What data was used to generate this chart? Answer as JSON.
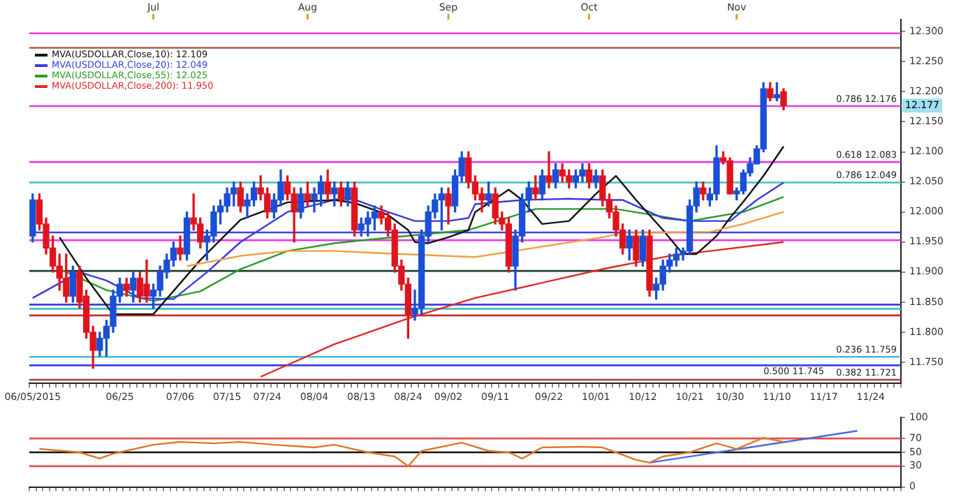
{
  "chart_data": [
    {
      "type": "candlestick",
      "legend": "top left",
      "marker": "none",
      "categories": [
        "06/05/2015",
        null,
        null,
        null,
        null,
        null,
        null,
        null,
        null,
        null,
        null,
        null,
        null,
        "06/25",
        null,
        null,
        null,
        null,
        null,
        null,
        null,
        null,
        "07/06",
        null,
        null,
        null,
        null,
        null,
        null,
        "07/15",
        null,
        null,
        null,
        null,
        null,
        "07/24",
        null,
        null,
        null,
        null,
        null,
        null,
        "08/04",
        null,
        null,
        null,
        null,
        null,
        null,
        "08/13",
        null,
        null,
        null,
        null,
        null,
        null,
        "08/24",
        null,
        null,
        null,
        null,
        null,
        "09/02",
        null,
        null,
        null,
        null,
        null,
        null,
        "09/11",
        null,
        null,
        null,
        null,
        null,
        null,
        null,
        "09/22",
        null,
        null,
        null,
        null,
        null,
        null,
        "10/01",
        null,
        null,
        null,
        null,
        null,
        null,
        "10/12",
        null,
        null,
        null,
        null,
        null,
        null,
        "10/21",
        null,
        null,
        null,
        null,
        null,
        "10/30",
        null,
        null,
        null,
        null,
        null,
        null,
        "11/10",
        null,
        null,
        null,
        null,
        null,
        null,
        "11/17",
        null,
        null,
        null,
        null,
        null,
        null,
        "11/24",
        null,
        null,
        null,
        null
      ],
      "ohlc": [
        [
          11.96,
          12.03,
          11.95,
          12.02
        ],
        [
          12.02,
          12.03,
          11.97,
          11.98
        ],
        [
          11.98,
          11.99,
          11.93,
          11.94
        ],
        [
          11.94,
          11.96,
          11.9,
          11.91
        ],
        [
          11.91,
          11.93,
          11.87,
          11.89
        ],
        [
          11.89,
          11.93,
          11.85,
          11.86
        ],
        [
          11.86,
          11.91,
          11.85,
          11.9
        ],
        [
          11.9,
          11.91,
          11.84,
          11.85
        ],
        [
          11.86,
          11.87,
          11.79,
          11.8
        ],
        [
          11.8,
          11.81,
          11.74,
          11.77
        ],
        [
          11.77,
          11.8,
          11.76,
          11.79
        ],
        [
          11.79,
          11.82,
          11.76,
          11.81
        ],
        [
          11.81,
          11.87,
          11.8,
          11.86
        ],
        [
          11.86,
          11.89,
          11.85,
          11.88
        ],
        [
          11.88,
          11.89,
          11.86,
          11.87
        ],
        [
          11.87,
          11.9,
          11.85,
          11.89
        ],
        [
          11.89,
          11.9,
          11.85,
          11.86
        ],
        [
          11.88,
          11.92,
          11.85,
          11.86
        ],
        [
          11.86,
          11.88,
          11.84,
          11.87
        ],
        [
          11.87,
          11.91,
          11.86,
          11.9
        ],
        [
          11.9,
          11.93,
          11.89,
          11.92
        ],
        [
          11.92,
          11.95,
          11.91,
          11.94
        ],
        [
          11.94,
          11.96,
          11.92,
          11.93
        ],
        [
          11.93,
          12.0,
          11.92,
          11.99
        ],
        [
          11.99,
          12.03,
          11.97,
          11.98
        ],
        [
          11.98,
          11.99,
          11.94,
          11.95
        ],
        [
          11.95,
          11.97,
          11.92,
          11.96
        ],
        [
          11.96,
          12.01,
          11.95,
          12.0
        ],
        [
          12.0,
          12.02,
          11.98,
          12.01
        ],
        [
          12.01,
          12.04,
          12.0,
          12.03
        ],
        [
          12.03,
          12.05,
          12.01,
          12.04
        ],
        [
          12.04,
          12.05,
          12.0,
          12.01
        ],
        [
          12.01,
          12.03,
          11.99,
          12.02
        ],
        [
          12.02,
          12.05,
          12.01,
          12.04
        ],
        [
          12.04,
          12.06,
          12.02,
          12.03
        ],
        [
          12.03,
          12.04,
          11.99,
          12.0
        ],
        [
          12.0,
          12.03,
          11.99,
          12.02
        ],
        [
          12.02,
          12.07,
          12.01,
          12.05
        ],
        [
          12.05,
          12.06,
          12.02,
          12.03
        ],
        [
          12.03,
          12.04,
          11.95,
          12.0
        ],
        [
          12.0,
          12.04,
          11.99,
          12.03
        ],
        [
          12.03,
          12.05,
          12.01,
          12.02
        ],
        [
          12.02,
          12.04,
          12.0,
          12.03
        ],
        [
          12.03,
          12.06,
          12.01,
          12.05
        ],
        [
          12.05,
          12.07,
          12.02,
          12.03
        ],
        [
          12.03,
          12.05,
          12.01,
          12.04
        ],
        [
          12.04,
          12.05,
          12.01,
          12.02
        ],
        [
          12.02,
          12.05,
          12.01,
          12.04
        ],
        [
          12.04,
          12.05,
          11.96,
          11.97
        ],
        [
          11.97,
          11.99,
          11.96,
          11.98
        ],
        [
          11.98,
          12.0,
          11.96,
          11.99
        ],
        [
          11.99,
          12.01,
          11.97,
          12.0
        ],
        [
          12.0,
          12.01,
          11.98,
          11.99
        ],
        [
          11.99,
          12.0,
          11.96,
          11.97
        ],
        [
          11.97,
          11.98,
          11.9,
          11.91
        ],
        [
          11.91,
          11.92,
          11.87,
          11.88
        ],
        [
          11.88,
          11.89,
          11.79,
          11.83
        ],
        [
          11.83,
          11.87,
          11.82,
          11.84
        ],
        [
          11.84,
          11.97,
          11.83,
          11.96
        ],
        [
          11.96,
          12.01,
          11.95,
          12.0
        ],
        [
          12.0,
          12.03,
          11.99,
          12.02
        ],
        [
          12.02,
          12.04,
          11.97,
          12.03
        ],
        [
          12.03,
          12.04,
          11.98,
          12.01
        ],
        [
          12.01,
          12.07,
          12.0,
          12.06
        ],
        [
          12.06,
          12.1,
          12.05,
          12.09
        ],
        [
          12.09,
          12.1,
          12.04,
          12.05
        ],
        [
          12.05,
          12.06,
          12.02,
          12.03
        ],
        [
          12.03,
          12.04,
          12.0,
          12.02
        ],
        [
          12.02,
          12.05,
          12.01,
          12.03
        ],
        [
          12.03,
          12.04,
          11.98,
          11.99
        ],
        [
          11.99,
          12.0,
          11.97,
          11.98
        ],
        [
          11.98,
          11.99,
          11.9,
          11.91
        ],
        [
          11.91,
          11.97,
          11.87,
          11.96
        ],
        [
          11.96,
          12.03,
          11.95,
          12.02
        ],
        [
          12.02,
          12.05,
          12.0,
          12.04
        ],
        [
          12.04,
          12.06,
          12.02,
          12.03
        ],
        [
          12.03,
          12.07,
          12.02,
          12.06
        ],
        [
          12.06,
          12.1,
          12.04,
          12.05
        ],
        [
          12.05,
          12.08,
          12.04,
          12.07
        ],
        [
          12.07,
          12.08,
          12.05,
          12.06
        ],
        [
          12.06,
          12.07,
          12.04,
          12.05
        ],
        [
          12.05,
          12.07,
          12.04,
          12.06
        ],
        [
          12.06,
          12.08,
          12.05,
          12.07
        ],
        [
          12.07,
          12.08,
          12.04,
          12.05
        ],
        [
          12.05,
          12.07,
          12.04,
          12.06
        ],
        [
          12.06,
          12.07,
          12.01,
          12.02
        ],
        [
          12.02,
          12.03,
          11.99,
          12.0
        ],
        [
          12.0,
          12.01,
          11.96,
          11.97
        ],
        [
          11.97,
          11.98,
          11.93,
          11.94
        ],
        [
          11.94,
          11.97,
          11.92,
          11.96
        ],
        [
          11.96,
          11.97,
          11.91,
          11.92
        ],
        [
          11.92,
          11.97,
          11.91,
          11.96
        ],
        [
          11.96,
          11.97,
          11.86,
          11.87
        ],
        [
          11.87,
          11.89,
          11.855,
          11.88
        ],
        [
          11.88,
          11.92,
          11.87,
          11.91
        ],
        [
          11.91,
          11.93,
          11.9,
          11.92
        ],
        [
          11.92,
          11.94,
          11.91,
          11.93
        ],
        [
          11.93,
          11.94,
          11.92,
          11.935
        ],
        [
          11.935,
          12.02,
          11.93,
          12.01
        ],
        [
          12.01,
          12.05,
          12.0,
          12.04
        ],
        [
          12.04,
          12.05,
          12.02,
          12.03
        ],
        [
          12.02,
          12.04,
          12.01,
          12.03
        ],
        [
          12.03,
          12.11,
          12.02,
          12.09
        ],
        [
          12.09,
          12.1,
          12.08,
          12.085
        ],
        [
          12.085,
          12.09,
          12.03,
          12.03
        ],
        [
          12.03,
          12.04,
          12.02,
          12.035
        ],
        [
          12.035,
          12.07,
          12.03,
          12.065
        ],
        [
          12.065,
          12.09,
          12.06,
          12.08
        ],
        [
          12.08,
          12.11,
          12.08,
          12.105
        ],
        [
          12.105,
          12.215,
          12.1,
          12.205
        ],
        [
          12.205,
          12.215,
          12.185,
          12.19
        ],
        [
          12.19,
          12.215,
          12.185,
          12.195
        ],
        [
          12.2,
          12.205,
          12.17,
          12.177
        ],
        null,
        null,
        null,
        null,
        null,
        null,
        null,
        null,
        null,
        null,
        null,
        null,
        null,
        null,
        null,
        null,
        null
      ],
      "colors": [
        "#1a4fd6",
        "#e0141e",
        "#e0141e",
        "#e0141e",
        "#e0141e",
        "#e0141e",
        "#1a4fd6",
        "#e0141e",
        "#e0141e",
        "#e0141e",
        "#1a4fd6",
        "#1a4fd6",
        "#1a4fd6",
        "#1a4fd6",
        "#e0141e",
        "#1a4fd6",
        "#e0141e",
        "#e0141e",
        "#1a4fd6",
        "#1a4fd6",
        "#1a4fd6",
        "#1a4fd6",
        "#e0141e",
        "#1a4fd6",
        "#e0141e",
        "#e0141e",
        "#1a4fd6",
        "#1a4fd6",
        "#1a4fd6",
        "#1a4fd6",
        "#1a4fd6",
        "#e0141e",
        "#1a4fd6",
        "#1a4fd6",
        "#e0141e",
        "#e0141e",
        "#1a4fd6",
        "#1a4fd6",
        "#e0141e",
        "#e0141e",
        "#1a4fd6",
        "#e0141e",
        "#1a4fd6",
        "#1a4fd6",
        "#e0141e",
        "#1a4fd6",
        "#e0141e",
        "#1a4fd6",
        "#e0141e",
        "#1a4fd6",
        "#1a4fd6",
        "#1a4fd6",
        "#e0141e",
        "#e0141e",
        "#e0141e",
        "#e0141e",
        "#e0141e",
        "#1a4fd6",
        "#1a4fd6",
        "#1a4fd6",
        "#1a4fd6",
        "#1a4fd6",
        "#e0141e",
        "#1a4fd6",
        "#1a4fd6",
        "#e0141e",
        "#e0141e",
        "#e0141e",
        "#1a4fd6",
        "#e0141e",
        "#e0141e",
        "#e0141e",
        "#1a4fd6",
        "#1a4fd6",
        "#1a4fd6",
        "#e0141e",
        "#1a4fd6",
        "#e0141e",
        "#1a4fd6",
        "#e0141e",
        "#e0141e",
        "#1a4fd6",
        "#1a4fd6",
        "#e0141e",
        "#1a4fd6",
        "#e0141e",
        "#e0141e",
        "#e0141e",
        "#e0141e",
        "#1a4fd6",
        "#e0141e",
        "#1a4fd6",
        "#e0141e",
        "#1a4fd6",
        "#1a4fd6",
        "#1a4fd6",
        "#1a4fd6",
        "#1a4fd6",
        "#1a4fd6",
        "#1a4fd6",
        "#e0141e",
        "#1a4fd6",
        "#1a4fd6",
        "#e0141e",
        "#e0141e",
        "#1a4fd6",
        "#1a4fd6",
        "#1a4fd6",
        "#1a4fd6",
        "#1a4fd6",
        "#e0141e",
        "#1a4fd6",
        "#e0141e",
        null,
        null,
        null,
        null,
        null,
        null,
        null,
        null,
        null,
        null,
        null,
        null,
        null,
        null,
        null,
        null,
        null
      ],
      "series": [
        {
          "type": "line",
          "name": "MVA(USDOLLAR,Close,10): 12.109",
          "color": "#111111",
          "values": [
            null,
            null,
            null,
            null,
            11.958,
            null,
            null,
            null,
            11.89,
            null,
            null,
            null,
            11.83,
            null,
            null,
            null,
            null,
            null,
            11.83,
            null,
            null,
            null,
            null,
            null,
            null,
            11.92,
            null,
            null,
            null,
            null,
            null,
            11.987,
            null,
            null,
            null,
            null,
            null,
            null,
            12.016,
            null,
            null,
            null,
            null,
            null,
            null,
            12.02,
            null,
            null,
            12.015,
            null,
            null,
            null,
            null,
            11.995,
            null,
            null,
            11.97,
            11.95,
            null,
            11.948,
            null,
            null,
            11.958,
            null,
            null,
            11.97,
            12.0,
            null,
            null,
            null,
            null,
            12.037,
            null,
            12.02,
            null,
            null,
            11.98,
            null,
            null,
            null,
            11.985,
            null,
            null,
            null,
            12.03,
            null,
            null,
            12.06,
            null,
            null,
            12.02,
            null,
            null,
            null,
            11.97,
            null,
            null,
            11.93,
            null,
            11.93,
            null,
            null,
            11.96,
            null,
            11.99,
            null,
            12.017,
            null,
            null,
            12.06,
            null,
            null,
            12.109,
            null,
            null,
            null,
            null,
            null,
            null,
            null,
            null,
            null,
            null,
            null,
            null,
            null,
            null,
            null,
            null,
            null
          ]
        },
        {
          "type": "line",
          "name": "MVA(USDOLLAR,Close,20): 12.049",
          "color": "#3a3ae0",
          "values": [
            11.857,
            null,
            null,
            null,
            null,
            null,
            null,
            11.9,
            null,
            null,
            null,
            11.886,
            null,
            null,
            null,
            null,
            11.857,
            null,
            null,
            null,
            null,
            11.855,
            null,
            null,
            null,
            null,
            11.9,
            null,
            null,
            null,
            null,
            11.95,
            null,
            null,
            null,
            null,
            null,
            null,
            12.0,
            null,
            null,
            null,
            null,
            null,
            null,
            12.02,
            null,
            12.025,
            null,
            null,
            null,
            null,
            null,
            12.0,
            null,
            null,
            null,
            11.985,
            null,
            null,
            null,
            null,
            11.985,
            null,
            null,
            11.99,
            12.013,
            null,
            null,
            null,
            null,
            null,
            null,
            12.02,
            null,
            null,
            null,
            null,
            null,
            null,
            12.022,
            null,
            null,
            null,
            null,
            null,
            12.02,
            null,
            12.02,
            null,
            null,
            null,
            null,
            null,
            11.99,
            null,
            null,
            null,
            11.985,
            null,
            null,
            null,
            null,
            null,
            11.985,
            null,
            null,
            null,
            12.02,
            null,
            null,
            null,
            12.049,
            null,
            null,
            null,
            null,
            null,
            null,
            null,
            null,
            null,
            null,
            null,
            null,
            null,
            null,
            null,
            null,
            null
          ]
        },
        {
          "type": "line",
          "name": "MVA(USDOLLAR,Close,55): 12.025",
          "color": "#2a9a2a",
          "values": [
            null,
            null,
            null,
            null,
            11.905,
            null,
            null,
            null,
            null,
            null,
            null,
            11.87,
            null,
            null,
            null,
            null,
            null,
            null,
            11.852,
            null,
            null,
            null,
            null,
            null,
            null,
            11.868,
            null,
            null,
            null,
            null,
            null,
            11.905,
            null,
            null,
            null,
            null,
            null,
            null,
            11.935,
            null,
            null,
            null,
            null,
            null,
            null,
            11.948,
            null,
            null,
            null,
            null,
            null,
            11.955,
            null,
            null,
            null,
            null,
            null,
            null,
            null,
            null,
            null,
            null,
            null,
            null,
            null,
            11.97,
            null,
            null,
            null,
            null,
            null,
            null,
            null,
            null,
            null,
            12.005,
            null,
            null,
            null,
            null,
            null,
            null,
            null,
            null,
            null,
            null,
            null,
            12.005,
            null,
            null,
            null,
            null,
            null,
            null,
            null,
            null,
            null,
            null,
            11.985,
            null,
            null,
            null,
            null,
            null,
            null,
            null,
            12.0,
            null,
            null,
            null,
            null,
            null,
            12.025,
            null,
            null,
            null,
            null,
            null,
            null,
            null,
            null,
            null,
            null,
            null,
            null,
            null,
            null,
            null,
            null,
            null
          ]
        },
        {
          "type": "line",
          "name": "MVA(USDOLLAR,Close,200): 11.950",
          "color": "#e02828",
          "values": [
            null,
            null,
            null,
            null,
            null,
            null,
            null,
            null,
            null,
            null,
            null,
            null,
            null,
            null,
            null,
            null,
            null,
            null,
            null,
            null,
            null,
            null,
            null,
            null,
            null,
            null,
            null,
            null,
            null,
            null,
            null,
            null,
            null,
            null,
            11.726,
            null,
            null,
            null,
            null,
            null,
            null,
            null,
            null,
            null,
            null,
            11.78,
            null,
            null,
            null,
            null,
            null,
            null,
            null,
            null,
            null,
            null,
            11.823,
            null,
            null,
            null,
            null,
            null,
            null,
            null,
            null,
            null,
            11.857,
            null,
            null,
            null,
            null,
            null,
            null,
            null,
            null,
            null,
            null,
            null,
            null,
            null,
            null,
            null,
            null,
            null,
            null,
            11.905,
            null,
            null,
            null,
            null,
            null,
            null,
            null,
            null,
            null,
            11.927,
            null,
            null,
            null,
            null,
            null,
            11.935,
            null,
            null,
            null,
            null,
            null,
            null,
            null,
            null,
            null,
            null,
            11.95,
            null,
            null,
            null,
            null,
            null,
            null,
            null,
            null,
            null,
            null,
            null,
            null,
            null,
            null,
            null,
            null,
            null
          ]
        },
        {
          "type": "line",
          "color": "#f0a040",
          "values": [
            null,
            null,
            null,
            null,
            null,
            null,
            null,
            null,
            null,
            null,
            null,
            null,
            null,
            null,
            null,
            null,
            null,
            null,
            null,
            null,
            null,
            null,
            null,
            11.91,
            null,
            null,
            null,
            null,
            null,
            null,
            null,
            11.927,
            null,
            null,
            null,
            null,
            null,
            null,
            11.935,
            null,
            null,
            null,
            null,
            null,
            null,
            11.935,
            null,
            null,
            null,
            null,
            null,
            null,
            null,
            null,
            null,
            11.93,
            null,
            null,
            null,
            null,
            null,
            null,
            null,
            null,
            null,
            null,
            11.925,
            null,
            null,
            null,
            null,
            null,
            null,
            null,
            null,
            null,
            null,
            null,
            null,
            null,
            null,
            null,
            null,
            null,
            null,
            11.958,
            null,
            null,
            11.965,
            null,
            null,
            null,
            null,
            null,
            null,
            null,
            null,
            null,
            null,
            null,
            null,
            11.967,
            null,
            null,
            null,
            null,
            11.98,
            null,
            null,
            null,
            null,
            null,
            12.0,
            null,
            null,
            null,
            null,
            null,
            null,
            null,
            null,
            null,
            null,
            null,
            null,
            null,
            null,
            null,
            null,
            null
          ]
        }
      ],
      "ylim": [
        11.715,
        12.32
      ],
      "yticks": [
        {
          "value": 11.75,
          "label": "11.750"
        },
        {
          "value": 11.8,
          "label": "11.800"
        },
        {
          "value": 11.85,
          "label": "11.850"
        },
        {
          "value": 11.9,
          "label": "11.900"
        },
        {
          "value": 11.95,
          "label": "11.950"
        },
        {
          "value": 12,
          "label": "12.000"
        },
        {
          "value": 12.05,
          "label": "12.050"
        },
        {
          "value": 12.1,
          "label": "12.100"
        },
        {
          "value": 12.15,
          "label": "12.150"
        },
        {
          "value": 12.2,
          "label": "12.200"
        },
        {
          "value": 12.25,
          "label": "12.250"
        },
        {
          "value": 12.3,
          "label": "12.300"
        }
      ],
      "ref_lines": [
        {
          "axis": "y",
          "value": 12.297,
          "color": "#e040e0"
        },
        {
          "axis": "y",
          "value": 12.273,
          "color": "#a0604a"
        },
        {
          "axis": "y",
          "value": 12.176,
          "label": "0.786 12.176",
          "color": "#e040e0"
        },
        {
          "axis": "y",
          "value": 12.083,
          "label": "0.618 12.083",
          "color": "#e040e0"
        },
        {
          "axis": "y",
          "value": 12.049,
          "label": "0.786 12.049",
          "color": "#40c0c0"
        },
        {
          "axis": "y",
          "value": 11.966,
          "color": "#4040e0"
        },
        {
          "axis": "y",
          "value": 11.953,
          "color": "#e040e0"
        },
        {
          "axis": "y",
          "value": 11.902,
          "color": "#204030"
        },
        {
          "axis": "y",
          "value": 11.846,
          "color": "#4040e0"
        },
        {
          "axis": "y",
          "value": 11.839,
          "color": "#40c0c0"
        },
        {
          "axis": "y",
          "value": 11.828,
          "color": "#c03030"
        },
        {
          "axis": "y",
          "value": 11.759,
          "label": "0.236 11.759",
          "color": "#40c0c0"
        },
        {
          "axis": "y",
          "value": 11.745,
          "label": "0.500 11.745",
          "color": "#4040e0"
        },
        {
          "axis": "y",
          "value": 11.721,
          "label": "0.382 11.721",
          "color": "#a04040"
        }
      ],
      "annotations": [
        "Jul",
        "Aug",
        "Sep",
        "Oct",
        "Nov",
        "12.177"
      ]
    },
    {
      "type": "line",
      "marker": "none",
      "tick_labels": "y",
      "categories": [
        null,
        null,
        null,
        null,
        null,
        null,
        null,
        null,
        null,
        null,
        null,
        null,
        null,
        null,
        null,
        null,
        null,
        null,
        null,
        null,
        null,
        null,
        null,
        null,
        null,
        null,
        null,
        null,
        null,
        null,
        null,
        null,
        null,
        null,
        null,
        null,
        null,
        null,
        null,
        null,
        null,
        null,
        null,
        null,
        null,
        null,
        null,
        null,
        null,
        null,
        null,
        null,
        null,
        null,
        null,
        null,
        null,
        null,
        null,
        null,
        null,
        null,
        null,
        null,
        null,
        null,
        null,
        null,
        null,
        null,
        null,
        null,
        null,
        null,
        null,
        null,
        null,
        null,
        null,
        null,
        null,
        null,
        null,
        null,
        null,
        null,
        null,
        null,
        null,
        null,
        null,
        null,
        null,
        null,
        null,
        null,
        null,
        null,
        null,
        null,
        null,
        null,
        null,
        null,
        null,
        null,
        null,
        null,
        null,
        null,
        null,
        null,
        null,
        null,
        null,
        null,
        null,
        null,
        null,
        null,
        null,
        null,
        null,
        null,
        null,
        null,
        null,
        null,
        null,
        null
      ],
      "series": [
        {
          "color": "#e07828",
          "values": [
            null,
            55,
            null,
            null,
            null,
            null,
            null,
            50,
            null,
            null,
            41,
            null,
            48,
            null,
            null,
            null,
            null,
            null,
            61,
            null,
            null,
            null,
            65,
            null,
            null,
            null,
            null,
            63,
            null,
            null,
            null,
            65,
            null,
            null,
            null,
            null,
            61,
            null,
            null,
            null,
            null,
            null,
            57,
            null,
            null,
            61,
            null,
            null,
            null,
            null,
            50,
            null,
            null,
            null,
            44,
            null,
            30,
            null,
            52,
            null,
            null,
            null,
            null,
            null,
            64,
            null,
            null,
            null,
            52,
            null,
            null,
            50,
            null,
            41,
            null,
            null,
            57,
            null,
            null,
            null,
            null,
            null,
            58,
            null,
            null,
            57,
            null,
            50,
            null,
            null,
            39,
            null,
            35,
            null,
            44,
            null,
            null,
            null,
            50,
            null,
            null,
            null,
            63,
            null,
            null,
            55,
            null,
            null,
            null,
            71,
            null,
            null,
            65,
            null,
            null,
            null,
            null,
            null,
            null,
            null,
            null,
            null,
            null,
            null,
            null,
            null,
            null,
            null,
            null,
            null
          ]
        },
        {
          "color": "#4a6ae0",
          "values": [
            null,
            null,
            null,
            null,
            null,
            null,
            null,
            null,
            null,
            null,
            null,
            null,
            null,
            null,
            null,
            null,
            null,
            null,
            null,
            null,
            null,
            null,
            null,
            null,
            null,
            null,
            null,
            null,
            null,
            null,
            null,
            null,
            null,
            null,
            null,
            null,
            null,
            null,
            null,
            null,
            null,
            null,
            null,
            null,
            null,
            null,
            null,
            null,
            null,
            null,
            null,
            null,
            null,
            null,
            null,
            null,
            null,
            null,
            null,
            null,
            null,
            null,
            null,
            null,
            null,
            null,
            null,
            null,
            null,
            null,
            null,
            null,
            null,
            null,
            null,
            null,
            null,
            null,
            null,
            null,
            null,
            null,
            null,
            null,
            null,
            null,
            null,
            null,
            null,
            null,
            null,
            null,
            35,
            null,
            null,
            null,
            null,
            null,
            null,
            null,
            null,
            null,
            null,
            null,
            null,
            null,
            null,
            null,
            null,
            null,
            null,
            null,
            null,
            null,
            null,
            null,
            null,
            null,
            null,
            null,
            null,
            null,
            null,
            81,
            null,
            null,
            null,
            null,
            null,
            null
          ]
        }
      ],
      "ylim": [
        0,
        100
      ],
      "yticks": [
        0,
        30,
        50,
        70,
        100
      ],
      "ref_lines": [
        {
          "axis": "y",
          "value": 70,
          "color": "#e05050"
        },
        {
          "axis": "y",
          "value": 50,
          "color": "#111111"
        },
        {
          "axis": "y",
          "value": 30,
          "color": "#e05050"
        }
      ]
    }
  ]
}
